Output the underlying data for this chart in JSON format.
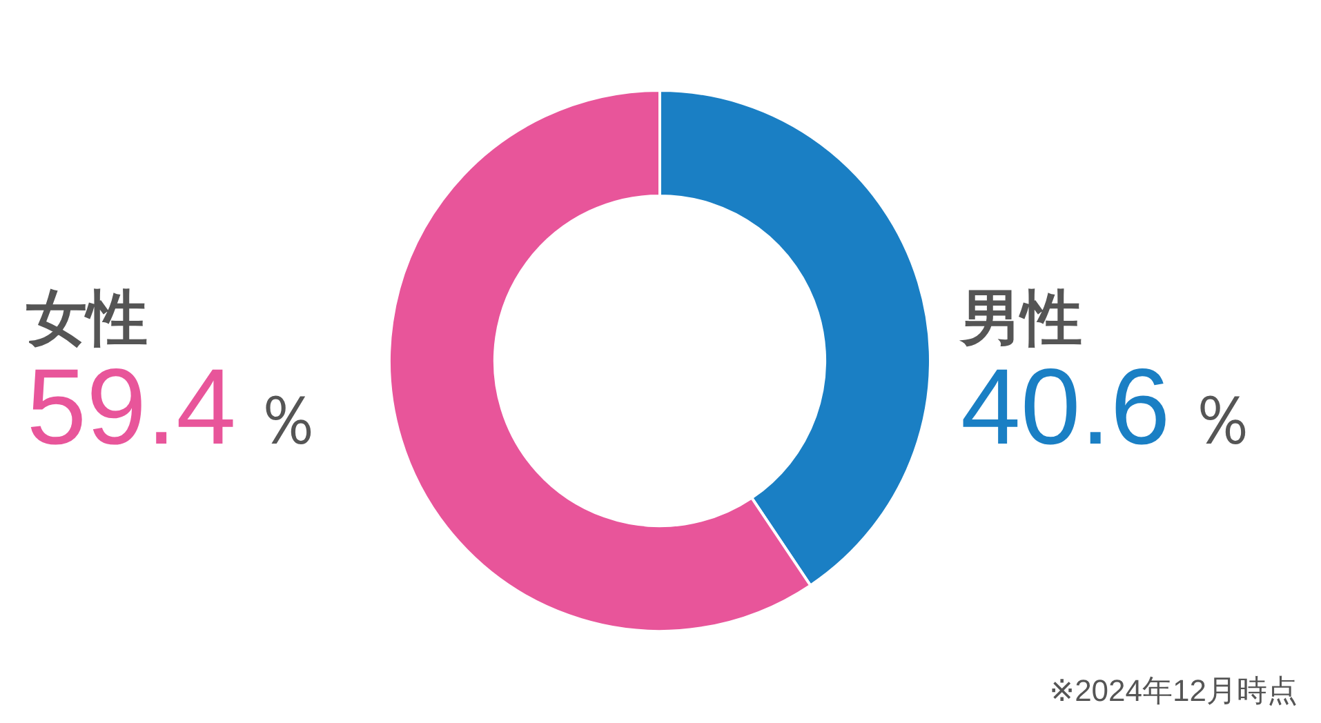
{
  "chart_data": {
    "type": "donut",
    "categories": [
      "男性",
      "女性"
    ],
    "values": [
      40.6,
      59.4
    ],
    "colors": [
      "#1a7fc4",
      "#e8559a"
    ],
    "value_labels": [
      "40.6％",
      "59.4％"
    ],
    "annotations": [
      "※2024年12月時点"
    ]
  }
}
